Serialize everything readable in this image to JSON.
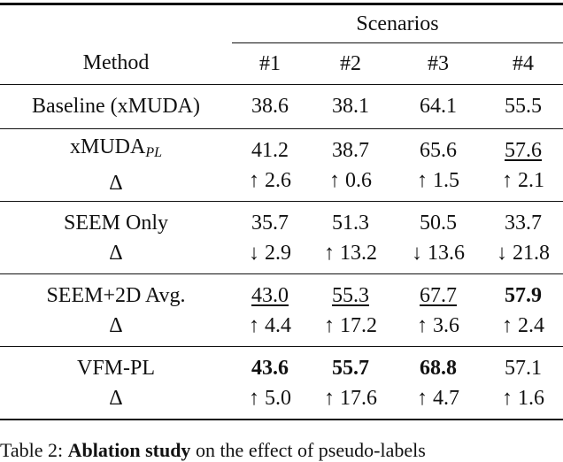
{
  "table": {
    "super_header": "Scenarios",
    "header": [
      "Method",
      "#1",
      "#2",
      "#3",
      "#4"
    ],
    "baseline": {
      "method": "Baseline (xMUDA)",
      "values": [
        "38.6",
        "38.1",
        "64.1",
        "55.5"
      ]
    },
    "groups": [
      {
        "method": "xMUDA",
        "method_sub": "PL",
        "delta_label": "Δ",
        "values": [
          "41.2",
          "38.7",
          "65.6",
          "57.6"
        ],
        "deltas": [
          "↑ 2.6",
          "↑ 0.6",
          "↑ 1.5",
          "↑ 2.1"
        ]
      },
      {
        "method": "SEEM Only",
        "delta_label": "Δ",
        "values": [
          "35.7",
          "51.3",
          "50.5",
          "33.7"
        ],
        "deltas": [
          "↓ 2.9",
          "↑ 13.2",
          "↓ 13.6",
          "↓ 21.8"
        ]
      },
      {
        "method": "SEEM+2D Avg.",
        "delta_label": "Δ",
        "values": [
          "43.0",
          "55.3",
          "67.7",
          "57.9"
        ],
        "deltas": [
          "↑ 4.4",
          "↑ 17.2",
          "↑ 3.6",
          "↑ 2.4"
        ]
      },
      {
        "method": "VFM-PL",
        "delta_label": "Δ",
        "values": [
          "43.6",
          "55.7",
          "68.8",
          "57.1"
        ],
        "deltas": [
          "↑ 5.0",
          "↑ 17.6",
          "↑ 4.7",
          "↑ 1.6"
        ]
      }
    ]
  },
  "caption": {
    "label": "Table 2:",
    "bold": "Ablation study",
    "text": "on the effect of pseudo-labels"
  }
}
